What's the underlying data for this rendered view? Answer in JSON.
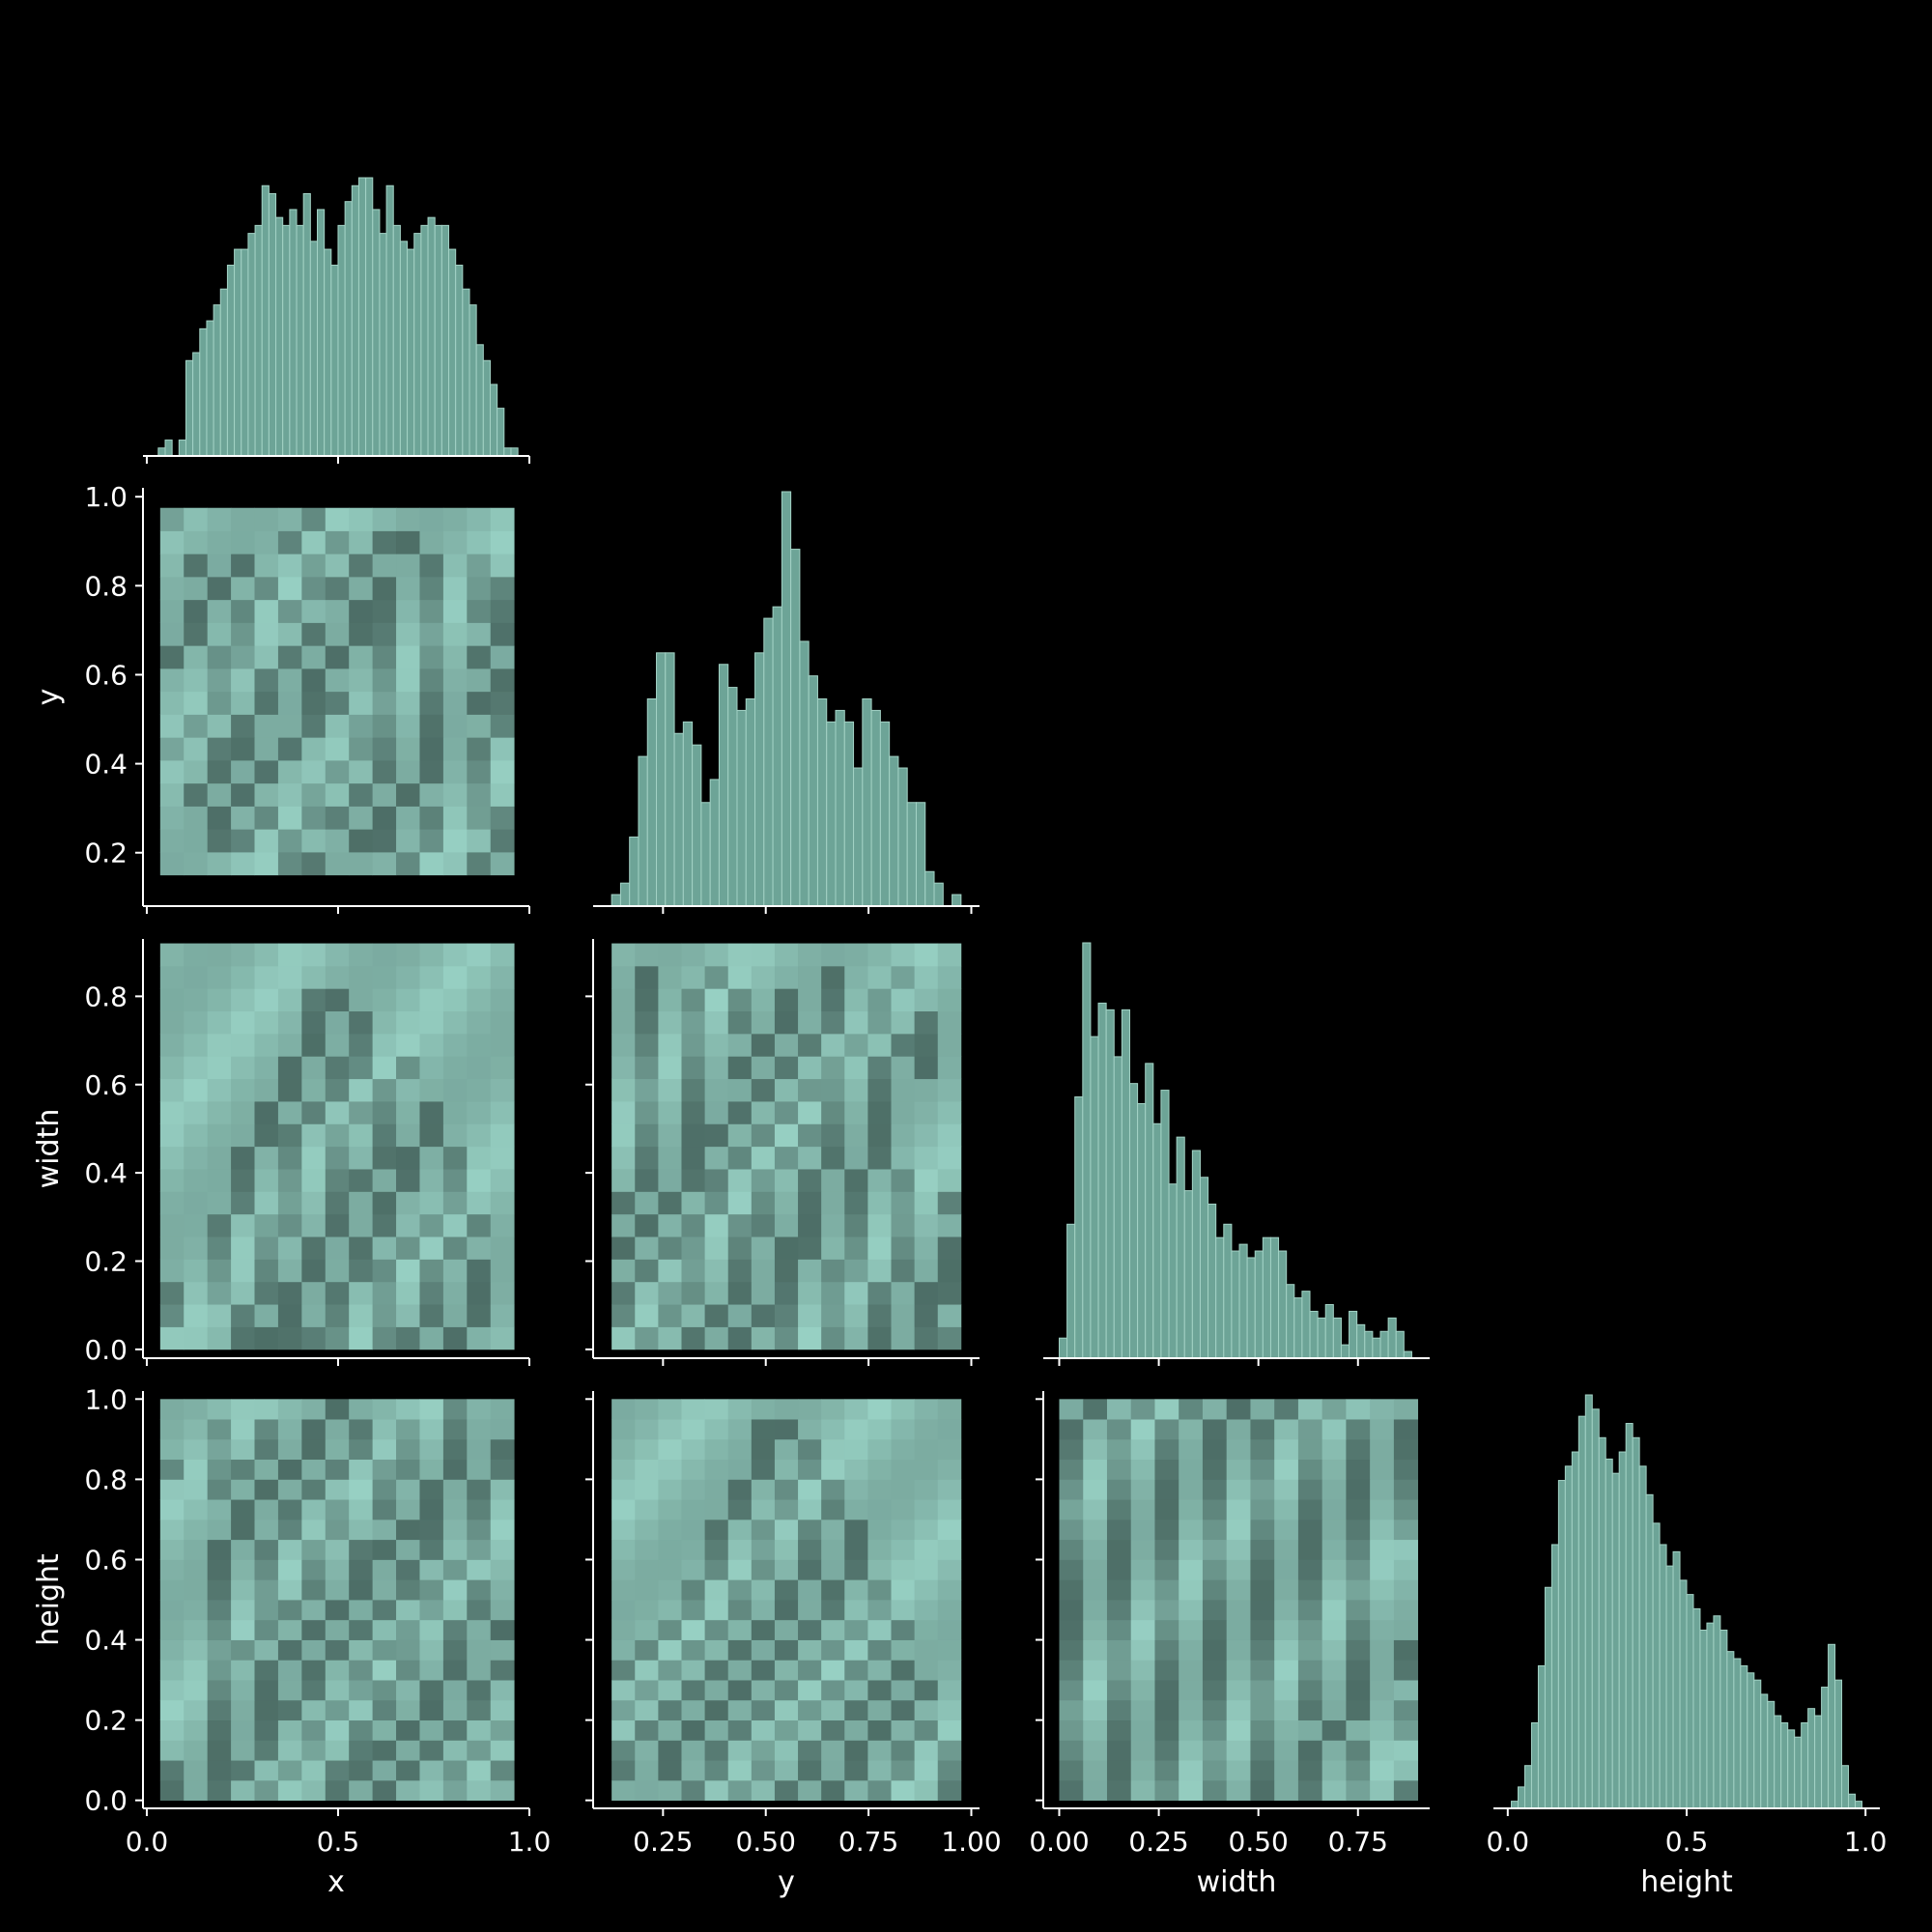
{
  "colors": {
    "background": "#000000",
    "foreground": "#ffffff",
    "bar_fill": "#6da497",
    "bar_edge": "#a3d2c5",
    "heat_light": "#97d0c3",
    "heat_dark": "#3b5650"
  },
  "chart_data": {
    "type": "pairplot",
    "variables": [
      "x",
      "y",
      "width",
      "height"
    ],
    "corner": true,
    "grid": false,
    "diagonal": [
      {
        "type": "histogram",
        "variable": "x",
        "xlim": [
          -0.01,
          1.0
        ],
        "bin_range": [
          0.03,
          0.97
        ],
        "counts": [
          1,
          2,
          0,
          2,
          12,
          13,
          16,
          17,
          19,
          21,
          24,
          26,
          26,
          28,
          29,
          34,
          33,
          30,
          29,
          31,
          29,
          33,
          27,
          31,
          26,
          24,
          29,
          32,
          34,
          35,
          35,
          31,
          28,
          34,
          29,
          27,
          26,
          28,
          29,
          30,
          29,
          29,
          26,
          24,
          21,
          19,
          14,
          12,
          9,
          6,
          1,
          1
        ]
      },
      {
        "type": "histogram",
        "variable": "y",
        "xlim": [
          0.08,
          1.02
        ],
        "bin_range": [
          0.125,
          0.975
        ],
        "counts": [
          1,
          2,
          6,
          13,
          18,
          22,
          22,
          15,
          16,
          14,
          9,
          11,
          21,
          19,
          17,
          18,
          22,
          25,
          26,
          36,
          31,
          23,
          20,
          18,
          16,
          17,
          16,
          12,
          18,
          17,
          16,
          13,
          12,
          9,
          9,
          3,
          2,
          0,
          1
        ]
      },
      {
        "type": "histogram",
        "variable": "width",
        "xlim": [
          -0.04,
          0.93
        ],
        "bin_range": [
          0.0,
          0.885
        ],
        "counts": [
          3,
          20,
          39,
          62,
          48,
          53,
          52,
          45,
          52,
          41,
          38,
          44,
          35,
          40,
          26,
          33,
          25,
          31,
          27,
          23,
          18,
          20,
          16,
          17,
          15,
          16,
          18,
          18,
          16,
          11,
          9,
          10,
          7,
          6,
          8,
          6,
          2,
          7,
          5,
          4,
          3,
          4,
          6,
          4,
          1
        ]
      },
      {
        "type": "histogram",
        "variable": "height",
        "xlim": [
          -0.04,
          1.04
        ],
        "bin_range": [
          0.01,
          0.99
        ],
        "counts": [
          1,
          3,
          6,
          12,
          20,
          31,
          37,
          46,
          48,
          50,
          55,
          58,
          56,
          52,
          49,
          47,
          50,
          54,
          52,
          48,
          44,
          40,
          37,
          34,
          36,
          32,
          30,
          28,
          25,
          26,
          27,
          25,
          22,
          21,
          20,
          19,
          18,
          16,
          15,
          13,
          12,
          11,
          10,
          12,
          14,
          13,
          17,
          23,
          18,
          6,
          2,
          1
        ]
      }
    ],
    "heatmaps": [
      {
        "x_var": "x",
        "y_var": "y",
        "xlim": [
          -0.01,
          1.0
        ],
        "ylim": [
          0.08,
          1.02
        ],
        "x_bins": [
          0.035,
          0.96,
          15
        ],
        "y_bins": [
          0.15,
          0.975,
          16
        ],
        "rows_bottom_to_top": [
          ".....##...#..#.",
          "..##.#..##.#..#",
          "..#.#.##.#.#.##",
          ".#.#..#.#.#..#.",
          "..#.#..#.#.#.#.",
          "#.##.#..##.#.#.",
          ".#.#..#.##.#..#",
          "..#.#.##.#.#.##",
          "..#.#.#..#.#..#",
          "#.##.#.#.#.#.#.",
          ".#.#..#.##.#..#",
          ".#.#.#..##.#.##",
          "..#.#.##.#.#.##",
          ".#.#..#.#..#.#.",
          ".....#.#.##....",
          "#.....#........"
        ]
      },
      {
        "x_var": "x",
        "y_var": "width",
        "xlim": [
          -0.01,
          1.0
        ],
        "ylim": [
          -0.02,
          0.93
        ],
        "x_bins": [
          0.035,
          0.96,
          15
        ],
        "y_bins": [
          0.0,
          0.92,
          18
        ],
        "rows_bottom_to_top": [
          "...#####.##.#..",
          "#..#.#.#.#.#.#.",
          "#.#.##.#.#.#.#.",
          "..#.#.#.##.#.#.",
          "..#.#.#.#.#.#..",
          "..#.##.#.#.#.#.",
          "...#.#.#.#..#..",
          "...#.#.##.#.#..",
          "...#.#.#.##.#..",
          "....##.#.#.#...",
          "....#.#.##.#...",
          ".....#.#.#.....",
          ".....#.##.#....",
          "......#.#......",
          "......#.#......",
          "......##.......",
          "...............",
          "..............."
        ]
      },
      {
        "x_var": "y",
        "y_var": "width",
        "xlim": [
          0.08,
          1.02
        ],
        "ylim": [
          -0.02,
          0.93
        ],
        "x_bins": [
          0.125,
          0.975,
          15
        ],
        "y_bins": [
          0.0,
          0.92,
          18
        ],
        "rows_bottom_to_top": [
          ".#.#.#.#.#.#.##",
          "#.#.#.##.#.#.#.",
          "#.##.#.#.#.#.##",
          ".#.#.#.#.##.#.#",
          "#.##.#.##.#.#.#",
          ".#.#.##.#.#.#..",
          "#.#.#.#.#.#.#.#",
          ".#.##.#.#.#.#..",
          ".#.#.#.#.#.#...",
          ".#.##.#.##.#...",
          ".#.#.#.#.#.#...",
          ".#.#..#.##.#...",
          ".#.#.#.#.#.#.#.",
          ".#.#..#.#.#.##.",
          ".#.#.#.#.#.#.#.",
          ".#.#.#.#.#.#...",
          ".#..#....#..#..",
          "..............."
        ]
      },
      {
        "x_var": "x",
        "y_var": "height",
        "xlim": [
          -0.01,
          1.0
        ],
        "ylim": [
          -0.02,
          1.02
        ],
        "x_bins": [
          0.035,
          0.96,
          15
        ],
        "y_bins": [
          0.0,
          1.0,
          20
        ],
        "rows_bottom_to_top": [
          "#.#.#..#.#..#..",
          "#.##.#.##.#.#.#",
          "..#.#.#.##.#.#.",
          "..#.#.#.#.#.#.#",
          "..#.##.#.#.#.#.",
          "..#.#.#.##.#.#.",
          "..#.#.#.#.#.#.#",
          "..##.#.#.##.#..",
          "..#.#.#.#.#.#.#",
          "..#.##.#.#.#.#.",
          "..#.#.#.#.##.#.",
          "..#.#.#.#.#.#..",
          "..#.#.#.##.#.#.",
          "...#.#.#..##.#.",
          "...#.#.#.#.#.#.",
          "..#.#.#..#.#.#.",
          "#.##.#.#.##.#.#",
          "..#.#.#.#.#.#.#",
          "..#.#.#.#.#.#..",
          ".......#....#.."
        ]
      },
      {
        "x_var": "y",
        "y_var": "height",
        "xlim": [
          0.08,
          1.02
        ],
        "ylim": [
          -0.02,
          1.02
        ],
        "x_bins": [
          0.125,
          0.975,
          15
        ],
        "y_bins": [
          0.0,
          1.0,
          20
        ],
        "rows_bottom_to_top": [
          "...#.#.#.#.#..#",
          "#.#.#.#.#.#.#.#",
          "#.#.#.#.#.#.#.#",
          ".#.#.#.#.#.#.#.",
          "#.#.#.#.#.#.#..",
          ".#.#.#.#.#.#.#.",
          "#.#.#.#.#.#.#..",
          ".#.#.#.#.#.#...",
          "..#.#.#.#.#.#..",
          "...#.#.#.#.#...",
          "...#.#.#.#.#...",
          "....#.#.#.#....",
          "....#.#.#.#....",
          "....#.#.#.#....",
          ".....#.#.#.....",
          ".....#.#.#.....",
          "......#.#......",
          "......#.#......",
          "......##.......",
          "..............."
        ]
      },
      {
        "x_var": "width",
        "y_var": "height",
        "xlim": [
          -0.04,
          0.93
        ],
        "ylim": [
          -0.02,
          1.02
        ],
        "x_bins": [
          0.0,
          0.9,
          15
        ],
        "y_bins": [
          0.0,
          1.0,
          20
        ],
        "rows_bottom_to_top": [
          "#.#.#.#.#.#.#.#",
          "#.#.#.#.#.#.#..",
          "#.#.#.#.#.#.#..",
          "#.#.#.#.#..#..#",
          "#.#.#.#.#.#.#.#",
          "#.#.#.#.#.#.#..",
          "#.#.#.#.#.#.#.#",
          "#.#.#.#.#.#.#.#",
          "#.#.#.#.#.#.#..",
          "#.#.#.#.#.#.#..",
          "#.#.#.#.#.#.#..",
          "#.#.#.#.#.#.#..",
          "#.#.#.#.#.#.#..",
          "#.#.#.#.#.#.#.#",
          "#.#.#.#.#.#.#.#",
          "#.#.#.#.#.#.#.#",
          "#.#.#.#.#.#.#.#",
          "#.#.#.#.#.#.#.#",
          "#.#.#.#.#.#.#.#",
          ".#.#.#.#.#.#..."
        ]
      }
    ],
    "x_ticks": [
      {
        "variable": "x",
        "ticks": [
          0.0,
          0.5,
          1.0
        ],
        "labels": [
          "0.0",
          "0.5",
          "1.0"
        ]
      },
      {
        "variable": "y",
        "ticks": [
          0.25,
          0.5,
          0.75,
          1.0
        ],
        "labels": [
          "0.25",
          "0.50",
          "0.75",
          "1.00"
        ]
      },
      {
        "variable": "width",
        "ticks": [
          0.0,
          0.25,
          0.5,
          0.75
        ],
        "labels": [
          "0.00",
          "0.25",
          "0.50",
          "0.75"
        ]
      },
      {
        "variable": "height",
        "ticks": [
          0.0,
          0.5,
          1.0
        ],
        "labels": [
          "0.0",
          "0.5",
          "1.0"
        ]
      }
    ],
    "y_ticks": [
      {
        "variable": "y",
        "ticks": [
          0.2,
          0.4,
          0.6,
          0.8,
          1.0
        ],
        "labels": [
          "0.2",
          "0.4",
          "0.6",
          "0.8",
          "1.0"
        ]
      },
      {
        "variable": "width",
        "ticks": [
          0.0,
          0.2,
          0.4,
          0.6,
          0.8
        ],
        "labels": [
          "0.0",
          "0.2",
          "0.4",
          "0.6",
          "0.8"
        ]
      },
      {
        "variable": "height",
        "ticks": [
          0.0,
          0.2,
          0.4,
          0.6,
          0.8,
          1.0
        ],
        "labels": [
          "0.0",
          "0.2",
          "0.4",
          "0.6",
          "0.8",
          "1.0"
        ]
      }
    ],
    "xlabels": [
      "x",
      "y",
      "width",
      "height"
    ],
    "ylabels": [
      "y",
      "width",
      "height"
    ]
  }
}
